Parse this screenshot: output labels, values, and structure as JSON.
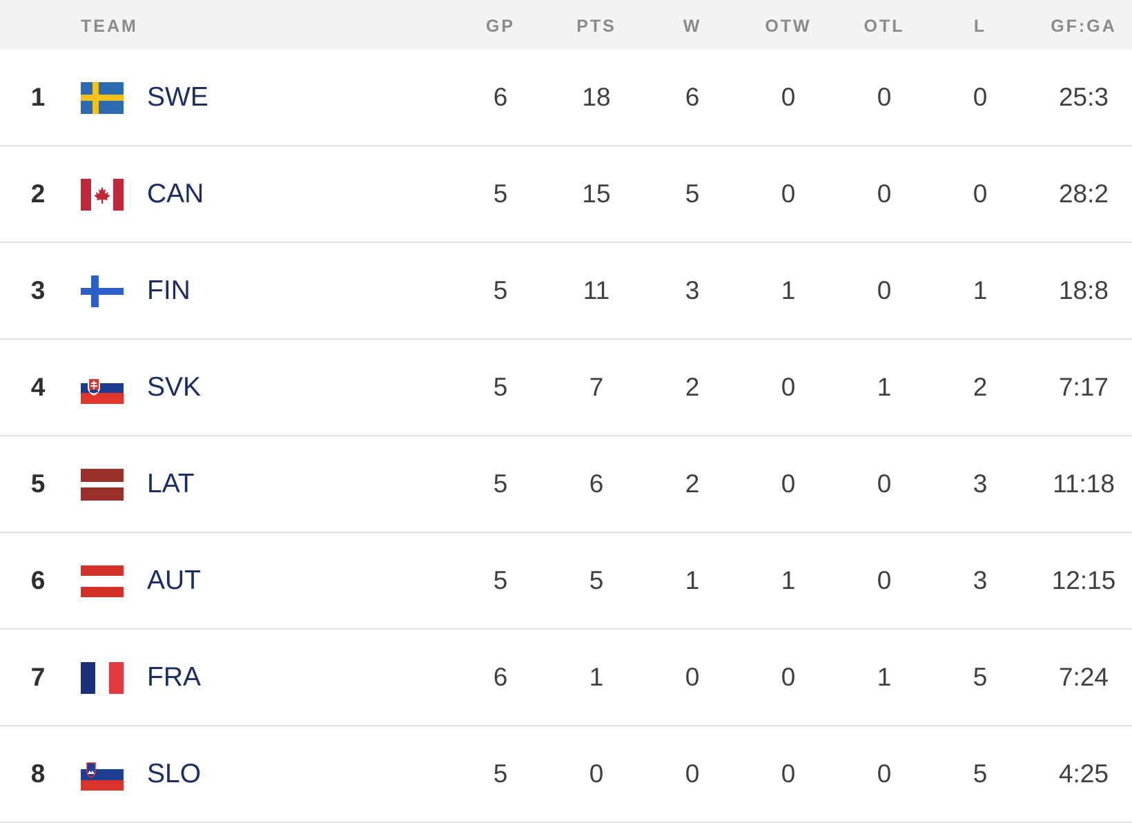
{
  "header": {
    "team": "TEAM",
    "gp": "GP",
    "pts": "PTS",
    "w": "W",
    "otw": "OTW",
    "otl": "OTL",
    "l": "L",
    "gfga": "GF:GA"
  },
  "rows": [
    {
      "rank": "1",
      "team": "SWE",
      "flag": "sweden-flag-icon",
      "gp": "6",
      "pts": "18",
      "w": "6",
      "otw": "0",
      "otl": "0",
      "l": "0",
      "gfga": "25:3"
    },
    {
      "rank": "2",
      "team": "CAN",
      "flag": "canada-flag-icon",
      "gp": "5",
      "pts": "15",
      "w": "5",
      "otw": "0",
      "otl": "0",
      "l": "0",
      "gfga": "28:2"
    },
    {
      "rank": "3",
      "team": "FIN",
      "flag": "finland-flag-icon",
      "gp": "5",
      "pts": "11",
      "w": "3",
      "otw": "1",
      "otl": "0",
      "l": "1",
      "gfga": "18:8"
    },
    {
      "rank": "4",
      "team": "SVK",
      "flag": "slovakia-flag-icon",
      "gp": "5",
      "pts": "7",
      "w": "2",
      "otw": "0",
      "otl": "1",
      "l": "2",
      "gfga": "7:17"
    },
    {
      "rank": "5",
      "team": "LAT",
      "flag": "latvia-flag-icon",
      "gp": "5",
      "pts": "6",
      "w": "2",
      "otw": "0",
      "otl": "0",
      "l": "3",
      "gfga": "11:18"
    },
    {
      "rank": "6",
      "team": "AUT",
      "flag": "austria-flag-icon",
      "gp": "5",
      "pts": "5",
      "w": "1",
      "otw": "1",
      "otl": "0",
      "l": "3",
      "gfga": "12:15"
    },
    {
      "rank": "7",
      "team": "FRA",
      "flag": "france-flag-icon",
      "gp": "6",
      "pts": "1",
      "w": "0",
      "otw": "0",
      "otl": "1",
      "l": "5",
      "gfga": "7:24"
    },
    {
      "rank": "8",
      "team": "SLO",
      "flag": "slovenia-flag-icon",
      "gp": "5",
      "pts": "0",
      "w": "0",
      "otw": "0",
      "otl": "0",
      "l": "5",
      "gfga": "4:25"
    }
  ],
  "colors": {
    "team_text": "#1b2d63",
    "header_bg": "#f3f3f3",
    "header_text": "#8a8a8a",
    "divider": "#e3e3e3"
  }
}
